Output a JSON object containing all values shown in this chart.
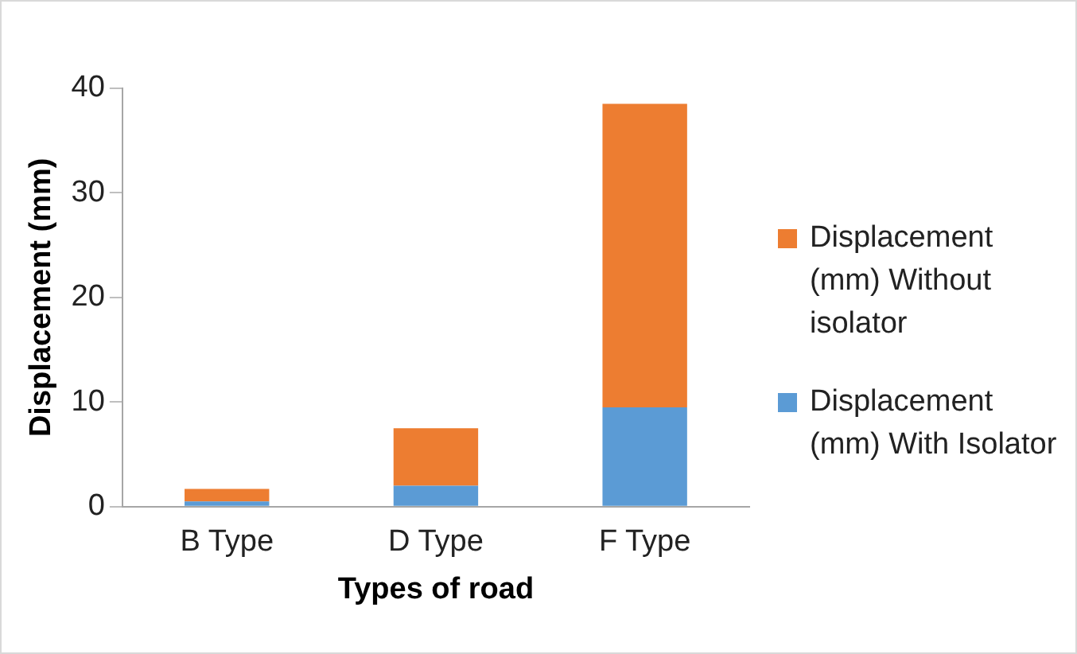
{
  "chart_data": {
    "type": "bar",
    "stacked": true,
    "xlabel": "Types of road",
    "ylabel": "Displacement (mm)",
    "categories": [
      "B Type",
      "D Type",
      "F Type"
    ],
    "series": [
      {
        "name": "Displacement (mm) With Isolator",
        "color": "#5b9bd5",
        "values": [
          0.5,
          2,
          9.5
        ]
      },
      {
        "name": "Displacement (mm) Without isolator",
        "color": "#ed7d31",
        "values": [
          1.2,
          5.5,
          29
        ]
      }
    ],
    "ylim": [
      0,
      40
    ],
    "yticks": [
      0,
      10,
      20,
      30,
      40
    ],
    "grid": false,
    "legend": "right"
  }
}
